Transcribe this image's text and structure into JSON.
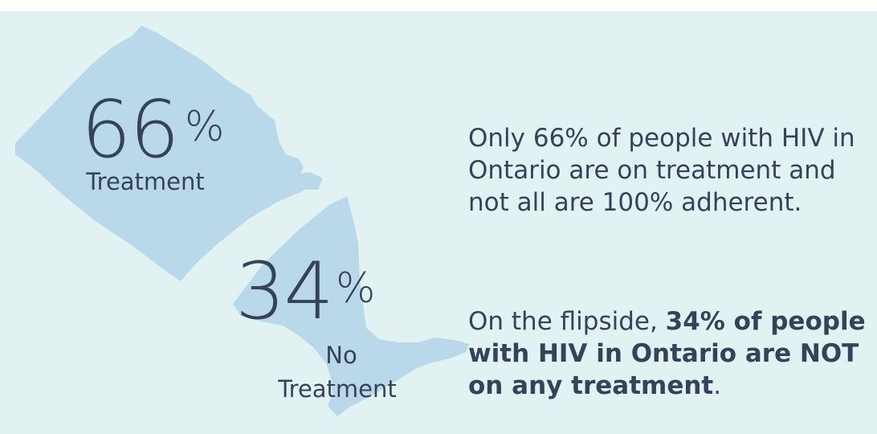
{
  "colors": {
    "background": "#e2f1f2",
    "map_fill": "#b9d8ea",
    "text": "#36425a"
  },
  "stats": {
    "treatment": {
      "value": "66",
      "symbol": "%",
      "label": "Treatment"
    },
    "no_treatment": {
      "value": "34",
      "symbol": "%",
      "label_line1": "No",
      "label_line2": "Treatment"
    }
  },
  "text": {
    "paragraph1": "Only 66% of people with HIV in Ontario are on treatment and not all are 100% adherent.",
    "paragraph2_prefix": "On the flipside, ",
    "paragraph2_bold": "34% of people with HIV in Ontario are NOT on any treatment",
    "paragraph2_suffix": "."
  }
}
